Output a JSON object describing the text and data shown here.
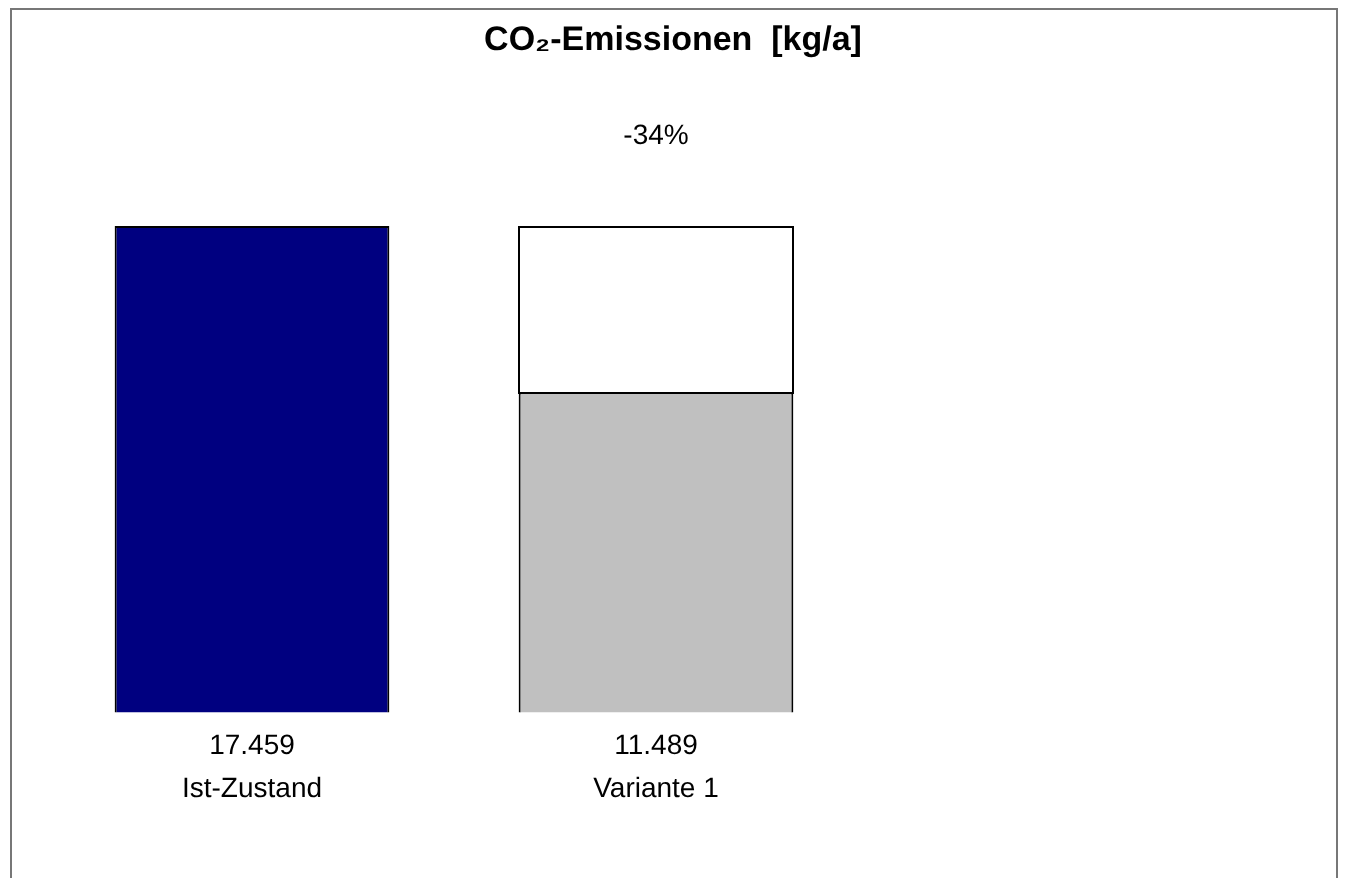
{
  "chart_data": {
    "type": "bar",
    "title": "CO₂-Emissionen  [kg/a]",
    "categories": [
      "Ist-Zustand",
      "Variante 1"
    ],
    "values": [
      17459,
      11489
    ],
    "value_labels": [
      "17.459",
      "11.489"
    ],
    "colors": [
      "#000080",
      "#c0c0c0"
    ],
    "annotations": [
      "-34%"
    ]
  }
}
